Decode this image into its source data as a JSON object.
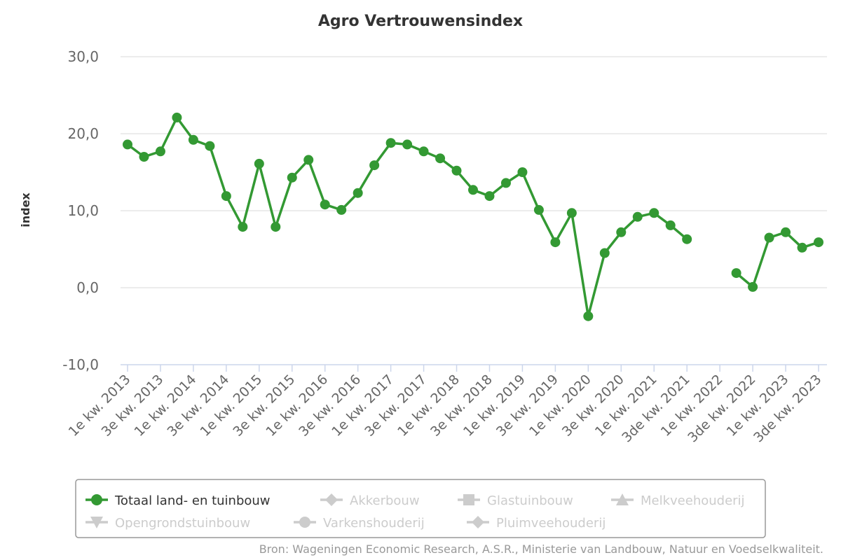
{
  "chart_data": {
    "type": "line",
    "title": "Agro Vertrouwensindex",
    "ylabel": "index",
    "ylim": [
      -10,
      30
    ],
    "yticks": [
      "30,0",
      "20,0",
      "10,0",
      "0,0",
      "-10,0"
    ],
    "ytick_values": [
      30,
      20,
      10,
      0,
      -10
    ],
    "x": [
      "1e kw. 2013",
      "2e kw. 2013",
      "3e kw. 2013",
      "4e kw. 2013",
      "1e kw. 2014",
      "2e kw. 2014",
      "3e kw. 2014",
      "4e kw. 2014",
      "1e kw. 2015",
      "2e kw. 2015",
      "3e kw. 2015",
      "4e kw. 2015",
      "1e kw. 2016",
      "2e kw. 2016",
      "3e kw. 2016",
      "4e kw. 2016",
      "1e kw. 2017",
      "2e kw. 2017",
      "3e kw. 2017",
      "4e kw. 2017",
      "1e kw. 2018",
      "2e kw. 2018",
      "3e kw. 2018",
      "4e kw. 2018",
      "1e kw. 2019",
      "2e kw. 2019",
      "3e kw. 2019",
      "4e kw. 2019",
      "1e kw. 2020",
      "2e kw. 2020",
      "3e kw. 2020",
      "4e kw. 2020",
      "1e kw. 2021",
      "2e kw. 2021",
      "3de kw. 2021",
      "4de kw. 2021",
      "1e kw. 2022",
      "2e kw. 2022",
      "3de kw. 2022",
      "4de kw. 2022",
      "1e kw. 2023",
      "2e kw. 2023",
      "3de kw. 2023",
      "4de kw. 2023"
    ],
    "xtick_labels": [
      "1e kw. 2013",
      "3e kw. 2013",
      "1e kw. 2014",
      "3e kw. 2014",
      "1e kw. 2015",
      "3e kw. 2015",
      "1e kw. 2016",
      "3e kw. 2016",
      "1e kw. 2017",
      "3e kw. 2017",
      "1e kw. 2018",
      "3e kw. 2018",
      "1e kw. 2019",
      "3e kw. 2019",
      "1e kw. 2020",
      "3e kw. 2020",
      "1e kw. 2021",
      "3de kw. 2021",
      "1e kw. 2022",
      "3de kw. 2022",
      "1e kw. 2023",
      "3de kw. 2023"
    ],
    "series": [
      {
        "name": "Totaal land- en tuinbouw",
        "color": "#339933",
        "values": [
          18.6,
          17.0,
          17.7,
          22.1,
          19.2,
          18.4,
          11.9,
          7.9,
          16.1,
          7.9,
          14.3,
          16.6,
          10.8,
          10.1,
          12.3,
          15.9,
          18.8,
          18.6,
          17.7,
          16.8,
          15.2,
          12.7,
          11.9,
          13.6,
          15.0,
          10.1,
          5.9,
          9.7,
          -3.7,
          4.5,
          7.2,
          9.2,
          9.7,
          8.1,
          6.3,
          null,
          null,
          1.9,
          0.1,
          6.5,
          7.2,
          5.2,
          5.9,
          null
        ]
      }
    ],
    "legend": {
      "placement": "bottom",
      "items": [
        {
          "label": "Totaal land- en tuinbouw",
          "marker": "circle",
          "active": true
        },
        {
          "label": "Akkerbouw",
          "marker": "diamond",
          "active": false
        },
        {
          "label": "Glastuinbouw",
          "marker": "square",
          "active": false
        },
        {
          "label": "Melkveehouderij",
          "marker": "triangle",
          "active": false
        },
        {
          "label": "Opengrondstuinbouw",
          "marker": "triangle-down",
          "active": false
        },
        {
          "label": "Varkenshouderij",
          "marker": "circle",
          "active": false
        },
        {
          "label": "Pluimveehouderij",
          "marker": "diamond",
          "active": false
        }
      ],
      "active_color": "#333333",
      "inactive_color": "#cccccc"
    },
    "grid": true,
    "credits": "Bron: Wageningen Economic Research, A.S.R., Ministerie van Landbouw, Natuur en Voedselkwaliteit."
  }
}
